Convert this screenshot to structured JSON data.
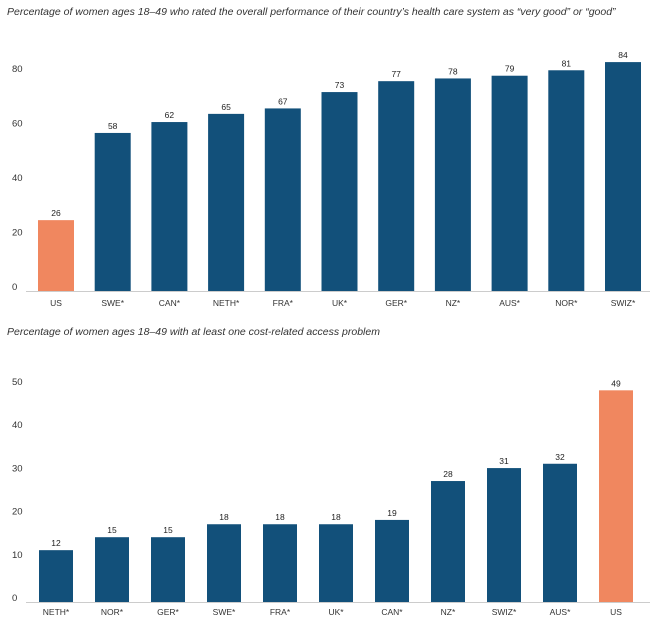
{
  "colors": {
    "bar": "#12507a",
    "highlight": "#f0875f"
  },
  "chart_data": [
    {
      "type": "bar",
      "title": "Percentage of women ages 18–49 who rated the overall performance of their country’s health care system as “very good” or “good”",
      "categories": [
        "US",
        "SWE*",
        "CAN*",
        "NETH*",
        "FRA*",
        "UK*",
        "GER*",
        "NZ*",
        "AUS*",
        "NOR*",
        "SWIZ*"
      ],
      "values": [
        26,
        58,
        62,
        65,
        67,
        73,
        77,
        78,
        79,
        81,
        84
      ],
      "highlight": [
        "US"
      ],
      "yticks": [
        0,
        20,
        40,
        60,
        80
      ],
      "ylim": [
        0,
        85
      ],
      "grid": false,
      "legend": "none"
    },
    {
      "type": "bar",
      "title": "Percentage of women ages 18–49 with at least one cost-related access problem",
      "categories": [
        "NETH*",
        "NOR*",
        "GER*",
        "SWE*",
        "FRA*",
        "UK*",
        "CAN*",
        "NZ*",
        "SWIZ*",
        "AUS*",
        "US"
      ],
      "values": [
        12,
        15,
        15,
        18,
        18,
        18,
        19,
        28,
        31,
        32,
        49
      ],
      "highlight": [
        "US"
      ],
      "yticks": [
        0,
        10,
        20,
        30,
        40,
        50
      ],
      "ylim": [
        0,
        52
      ],
      "grid": false,
      "legend": "none"
    }
  ]
}
